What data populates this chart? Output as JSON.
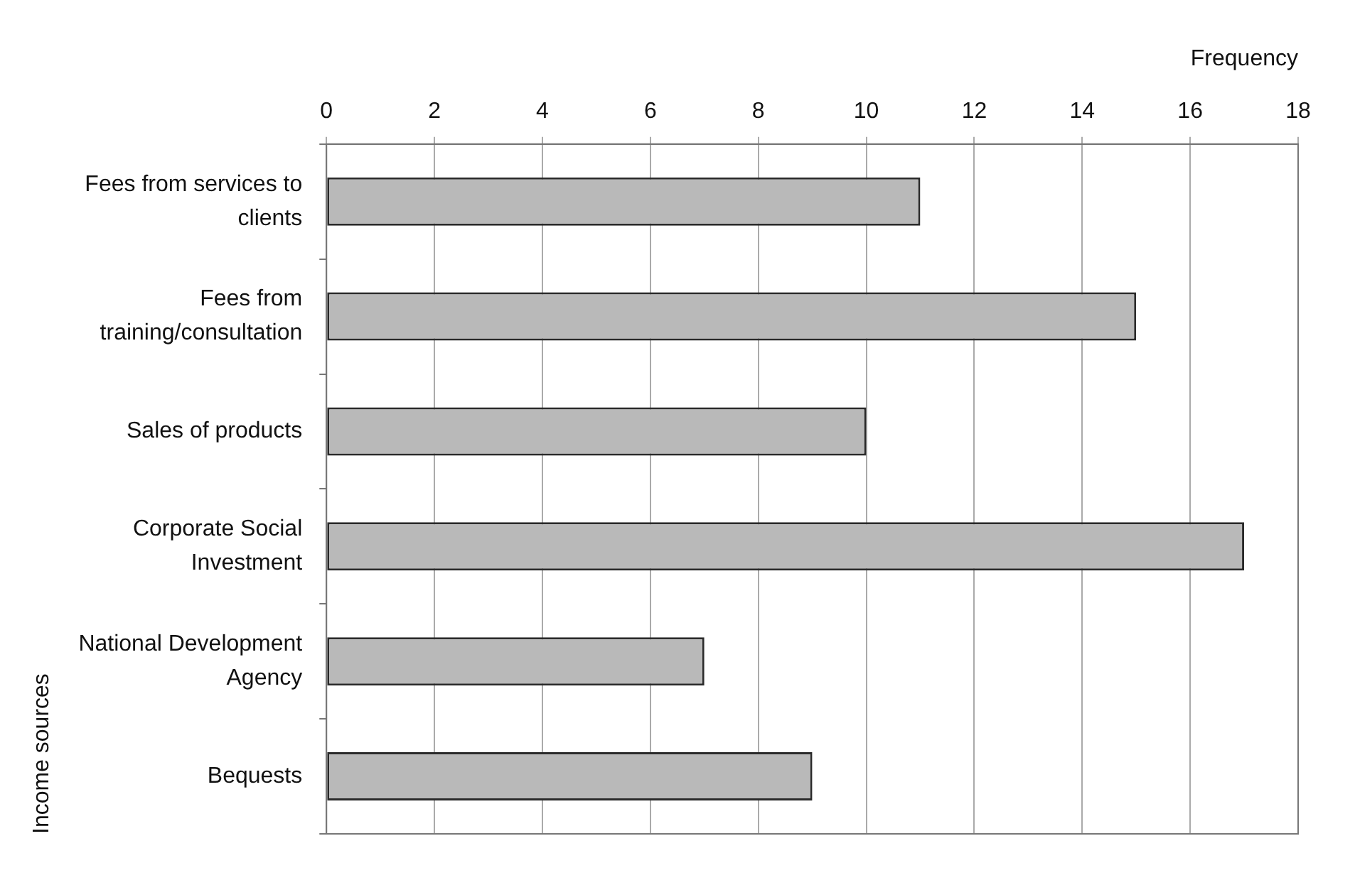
{
  "chart_data": {
    "type": "bar",
    "orientation": "horizontal",
    "xlabel": "Frequency",
    "ylabel": "Income sources",
    "categories": [
      "Fees from services to clients",
      "Fees from training/consultation",
      "Sales of products",
      "Corporate Social Investment",
      "National Development Agency",
      "Bequests"
    ],
    "values": [
      11,
      15,
      10,
      17,
      7,
      9
    ],
    "color": "#b9b9b9",
    "xlim": [
      0,
      18
    ],
    "xticks": [
      0,
      2,
      4,
      6,
      8,
      10,
      12,
      14,
      16,
      18
    ],
    "grid": "x",
    "legend": false
  }
}
